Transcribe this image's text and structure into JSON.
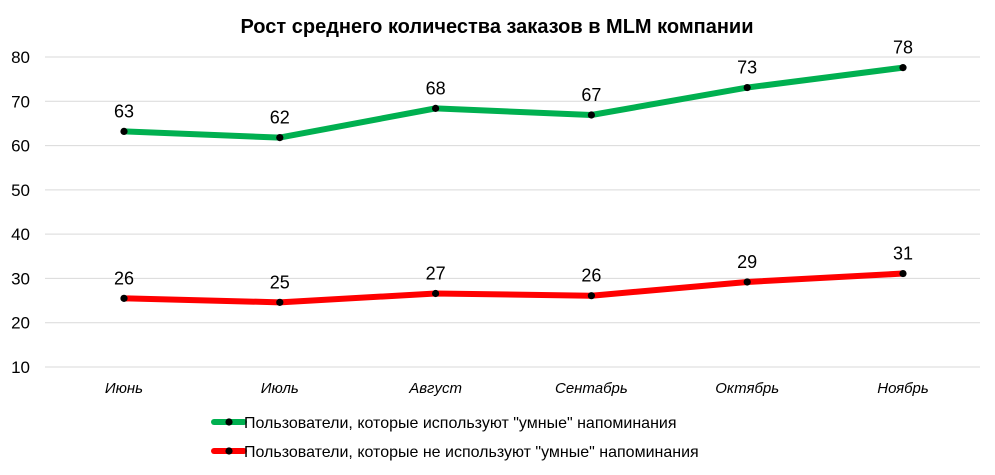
{
  "chart_data": {
    "type": "line",
    "title": "Рост среднего количества заказов в MLM компании",
    "xlabel": "",
    "ylabel": "",
    "categories": [
      "Июнь",
      "Июль",
      "Август",
      "Сентабрь",
      "Октябрь",
      "Ноябрь"
    ],
    "ylim": [
      10,
      80
    ],
    "yticks": [
      10,
      20,
      30,
      40,
      50,
      60,
      70,
      80
    ],
    "grid": true,
    "legend_position": "bottom",
    "series": [
      {
        "name": "Пользователи, которые используют \"умные\" напоминания",
        "values": [
          63,
          62,
          68,
          67,
          73,
          78
        ],
        "plot_values": [
          63.2,
          61.8,
          68.4,
          66.9,
          73.1,
          77.6
        ],
        "color": "#00b050"
      },
      {
        "name": "Пользователи, которые не используют \"умные\" напоминания",
        "values": [
          26,
          25,
          27,
          26,
          29,
          31
        ],
        "plot_values": [
          25.5,
          24.6,
          26.6,
          26.1,
          29.2,
          31.1
        ],
        "color": "#ff0000"
      }
    ],
    "marker_color": "#000000",
    "grid_color": "#d9d9d9"
  }
}
